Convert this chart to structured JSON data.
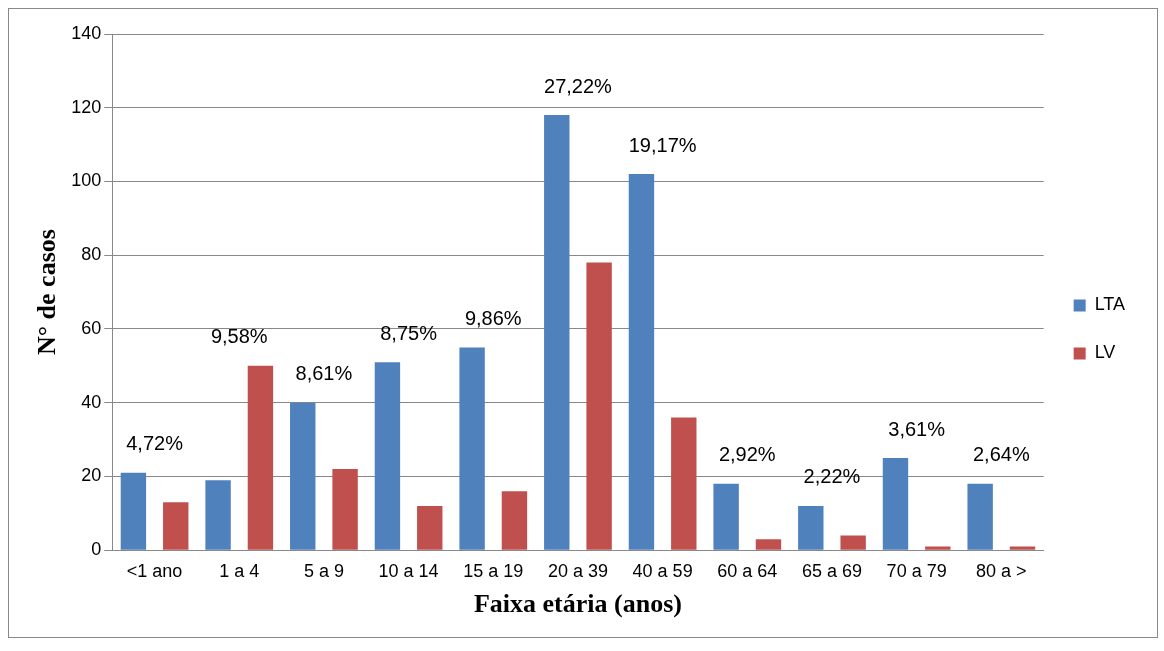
{
  "chart_data": {
    "type": "bar",
    "xlabel": "Faixa etária (anos)",
    "ylabel": "N° de casos",
    "categories": [
      "<1 ano",
      "1 a 4",
      "5 a 9",
      "10 a 14",
      "15 a 19",
      "20 a 39",
      "40 a 59",
      "60 a 64",
      "65 a 69",
      "70 a 79",
      "80 a >"
    ],
    "series": [
      {
        "name": "LTA",
        "color": "#4f81bd",
        "values": [
          21,
          19,
          40,
          51,
          55,
          118,
          102,
          18,
          12,
          25,
          18
        ]
      },
      {
        "name": "LV",
        "color": "#c0504d",
        "values": [
          13,
          50,
          22,
          12,
          16,
          78,
          36,
          3,
          4,
          1,
          1
        ]
      }
    ],
    "ylim": [
      0,
      140
    ],
    "yticks": [
      0,
      20,
      40,
      60,
      80,
      100,
      120,
      140
    ],
    "grid": "y",
    "legend": "right",
    "annotations": [
      "4,72%",
      "9,58%",
      "8,61%",
      "8,75%",
      "9,86%",
      "27,22%",
      "19,17%",
      "2,92%",
      "2,22%",
      "3,61%",
      "2,64%"
    ]
  }
}
